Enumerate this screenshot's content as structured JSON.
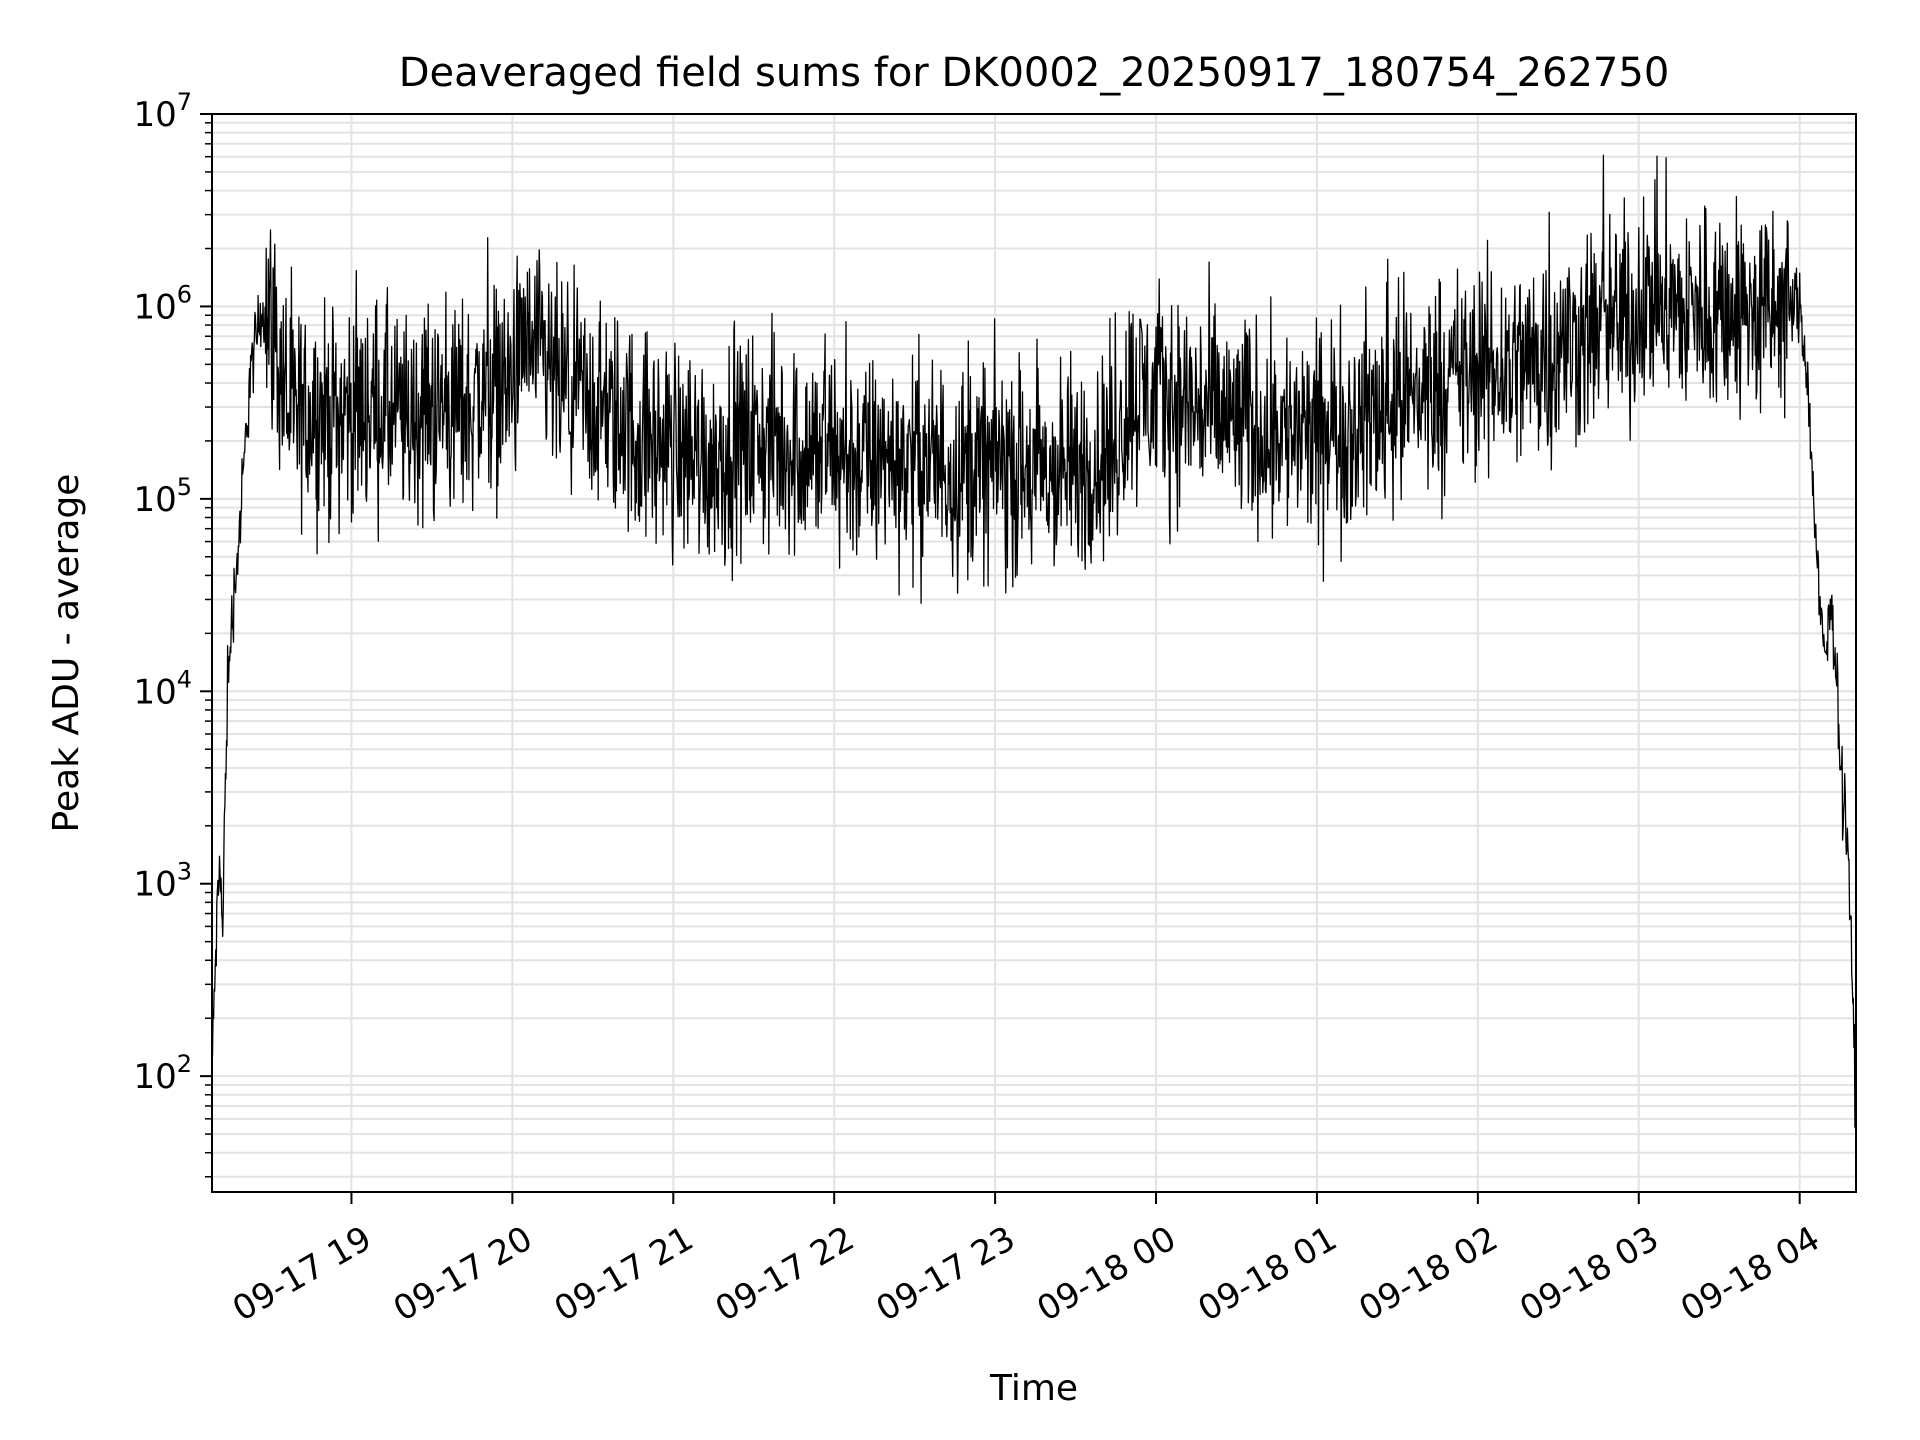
{
  "chart_data": {
    "type": "line",
    "title": "Deaveraged field sums for DK0002_20250917_180754_262750",
    "xlabel": "Time",
    "ylabel": "Peak ADU - average",
    "yscale": "log",
    "ylim": [
      25,
      10000000
    ],
    "xlim": [
      "09-17 18:08",
      "09-18 04:21"
    ],
    "grid": "major and minor",
    "line_color": "#000000",
    "grid_color": "#e3e3e3",
    "x_ticks": [
      {
        "value": "09-17 19:00",
        "label": "09-17 19"
      },
      {
        "value": "09-17 20:00",
        "label": "09-17 20"
      },
      {
        "value": "09-17 21:00",
        "label": "09-17 21"
      },
      {
        "value": "09-17 22:00",
        "label": "09-17 22"
      },
      {
        "value": "09-17 23:00",
        "label": "09-17 23"
      },
      {
        "value": "09-18 00:00",
        "label": "09-18 00"
      },
      {
        "value": "09-18 01:00",
        "label": "09-18 01"
      },
      {
        "value": "09-18 02:00",
        "label": "09-18 02"
      },
      {
        "value": "09-18 03:00",
        "label": "09-18 03"
      },
      {
        "value": "09-18 04:00",
        "label": "09-18 04"
      }
    ],
    "y_ticks": [
      {
        "value": 100,
        "base": "10",
        "exp": "2"
      },
      {
        "value": 1000,
        "base": "10",
        "exp": "3"
      },
      {
        "value": 10000,
        "base": "10",
        "exp": "4"
      },
      {
        "value": 100000,
        "base": "10",
        "exp": "5"
      },
      {
        "value": 1000000,
        "base": "10",
        "exp": "6"
      },
      {
        "value": 10000000,
        "base": "10",
        "exp": "7"
      }
    ],
    "series": [
      {
        "x": [
          "09-17 18:08",
          "09-17 18:09",
          "09-17 18:10",
          "09-17 18:11",
          "09-17 18:12",
          "09-17 18:13",
          "09-17 18:14",
          "09-17 18:15",
          "09-17 18:16",
          "09-17 18:18",
          "09-17 18:20",
          "09-17 18:22",
          "09-17 18:24",
          "09-17 18:26",
          "09-17 18:28",
          "09-17 18:30",
          "09-17 18:33",
          "09-17 18:36",
          "09-17 18:40",
          "09-17 18:45",
          "09-17 18:50",
          "09-17 18:55",
          "09-17 19:00",
          "09-17 19:10",
          "09-17 19:20",
          "09-17 19:30",
          "09-17 19:40",
          "09-17 19:50",
          "09-17 20:00",
          "09-17 20:05",
          "09-17 20:10",
          "09-17 20:20",
          "09-17 20:30",
          "09-17 20:40",
          "09-17 20:50",
          "09-17 21:00",
          "09-17 21:15",
          "09-17 21:30",
          "09-17 21:45",
          "09-17 22:00",
          "09-17 22:15",
          "09-17 22:30",
          "09-17 22:45",
          "09-17 23:00",
          "09-17 23:15",
          "09-17 23:30",
          "09-17 23:45",
          "09-17 23:50",
          "09-18 00:00",
          "09-18 00:15",
          "09-18 00:30",
          "09-18 00:45",
          "09-18 01:00",
          "09-18 01:15",
          "09-18 01:30",
          "09-18 01:45",
          "09-18 02:00",
          "09-18 02:15",
          "09-18 02:30",
          "09-18 02:45",
          "09-18 03:00",
          "09-18 03:05",
          "09-18 03:15",
          "09-18 03:30",
          "09-18 03:45",
          "09-18 04:00",
          "09-18 04:03",
          "09-18 04:06",
          "09-18 04:08",
          "09-18 04:10",
          "09-18 04:12",
          "09-18 04:14",
          "09-18 04:16",
          "09-18 04:18",
          "09-18 04:20",
          "09-18 04:21"
        ],
        "y": [
          100,
          300,
          700,
          1400,
          500,
          4000,
          10000,
          20000,
          30000,
          60000,
          150000,
          400000,
          600000,
          900000,
          1000000,
          900000,
          500000,
          300000,
          250000,
          300000,
          260000,
          280000,
          290000,
          300000,
          250000,
          280000,
          300000,
          350000,
          400000,
          600000,
          500000,
          350000,
          300000,
          250000,
          200000,
          180000,
          160000,
          200000,
          180000,
          170000,
          150000,
          160000,
          140000,
          150000,
          130000,
          140000,
          180000,
          350000,
          350000,
          300000,
          250000,
          230000,
          200000,
          250000,
          320000,
          400000,
          450000,
          500000,
          600000,
          800000,
          900000,
          1200000,
          900000,
          1000000,
          900000,
          1000000,
          400000,
          60000,
          20000,
          15000,
          30000,
          10000,
          3000,
          1500,
          200,
          60
        ]
      }
    ]
  }
}
